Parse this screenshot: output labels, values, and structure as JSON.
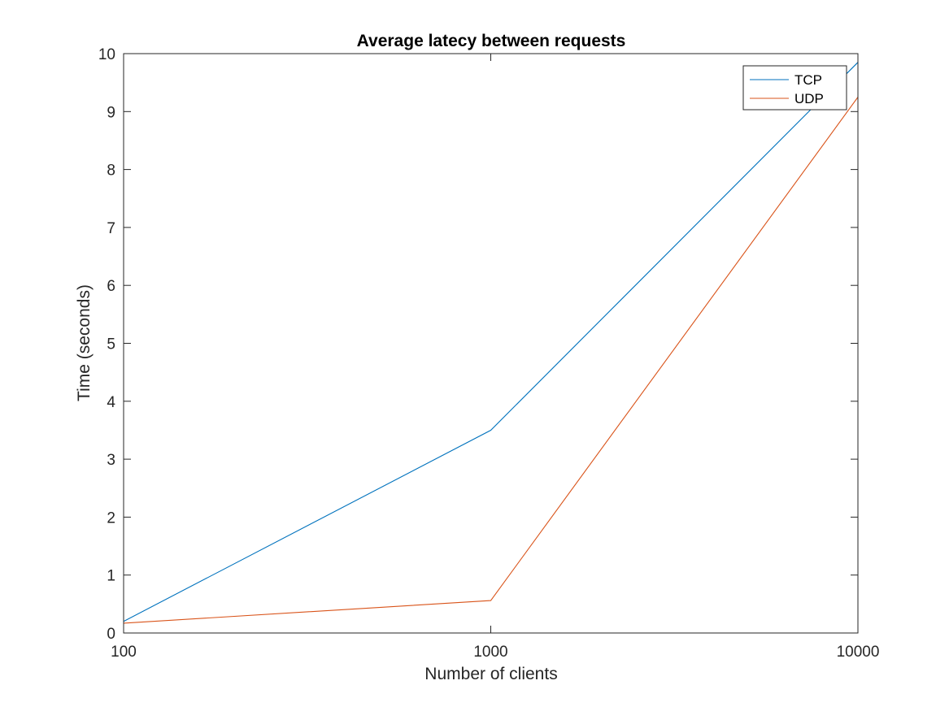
{
  "chart_data": {
    "type": "line",
    "title": "Average latecy between requests",
    "xlabel": "Number of clients",
    "ylabel": "Time (seconds)",
    "x_scale": "log",
    "x": [
      100,
      1000,
      10000
    ],
    "x_ticks": [
      "100",
      "1000",
      "10000"
    ],
    "xlim": [
      100,
      10000
    ],
    "y_ticks": [
      "0",
      "1",
      "2",
      "3",
      "4",
      "5",
      "6",
      "7",
      "8",
      "9",
      "10"
    ],
    "ylim": [
      0,
      10
    ],
    "grid": false,
    "legend_position": "top-right",
    "series": [
      {
        "name": "TCP",
        "values": [
          0.2,
          3.5,
          9.85
        ],
        "color": "#0072BD"
      },
      {
        "name": "UDP",
        "values": [
          0.17,
          0.56,
          9.25
        ],
        "color": "#D95319"
      }
    ]
  }
}
